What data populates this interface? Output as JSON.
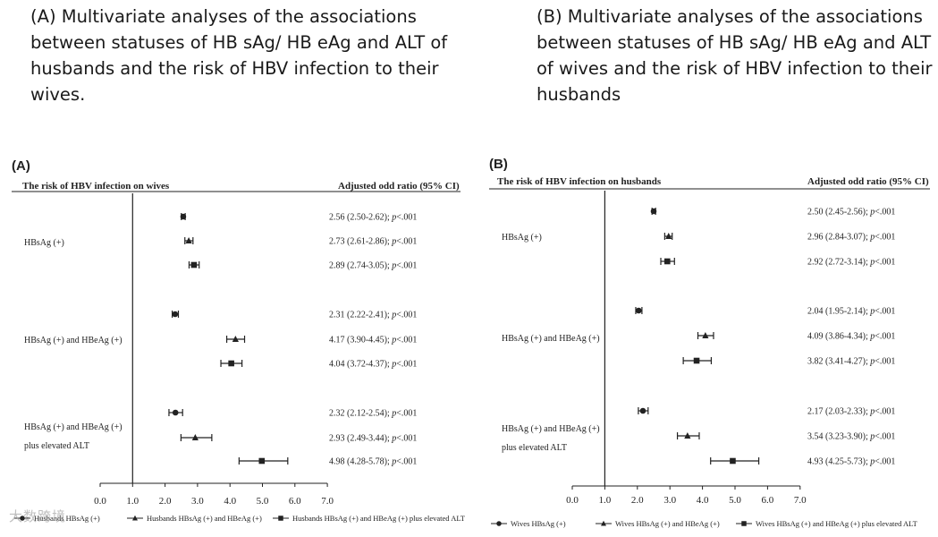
{
  "headings": {
    "a": "(A) Multivariate analyses of the associations between statuses of HB sAg/ HB eAg and ALT of husbands and the risk of HBV infection to their wives.",
    "b": "(B) Multivariate analyses of the associations between statuses of HB sAg/ HB eAg and ALT of wives and the risk of HBV infection to their husbands"
  },
  "watermark": "大数跨境",
  "chart_data": [
    {
      "type": "forest",
      "panel_label": "(A)",
      "title": "The risk of HBV infection on wives",
      "ci_header": "Adjusted odd ratio (95% CI)",
      "x_ticks": [
        "0.0",
        "1.0",
        "2.0",
        "3.0",
        "4.0",
        "5.0",
        "6.0",
        "7.0"
      ],
      "xlim": [
        0,
        7
      ],
      "reference_line": 1.0,
      "groups": [
        {
          "label_lines": [
            "HBsAg (+)"
          ],
          "rows": [
            {
              "series": 0,
              "or": 2.56,
              "lo": 2.5,
              "hi": 2.62,
              "text": "2.56 (2.50-2.62); p<.001"
            },
            {
              "series": 1,
              "or": 2.73,
              "lo": 2.61,
              "hi": 2.86,
              "text": "2.73 (2.61-2.86); p<.001"
            },
            {
              "series": 2,
              "or": 2.89,
              "lo": 2.74,
              "hi": 3.05,
              "text": "2.89 (2.74-3.05); p<.001"
            }
          ]
        },
        {
          "label_lines": [
            "HBsAg (+) and HBeAg (+)"
          ],
          "rows": [
            {
              "series": 0,
              "or": 2.31,
              "lo": 2.22,
              "hi": 2.41,
              "text": "2.31 (2.22-2.41); p<.001"
            },
            {
              "series": 1,
              "or": 4.17,
              "lo": 3.9,
              "hi": 4.45,
              "text": "4.17 (3.90-4.45); p<.001"
            },
            {
              "series": 2,
              "or": 4.04,
              "lo": 3.72,
              "hi": 4.37,
              "text": "4.04 (3.72-4.37); p<.001"
            }
          ]
        },
        {
          "label_lines": [
            "HBsAg (+) and HBeAg (+)",
            "plus elevated ALT"
          ],
          "rows": [
            {
              "series": 0,
              "or": 2.32,
              "lo": 2.12,
              "hi": 2.54,
              "text": "2.32 (2.12-2.54); p<.001"
            },
            {
              "series": 1,
              "or": 2.93,
              "lo": 2.49,
              "hi": 3.44,
              "text": "2.93 (2.49-3.44); p<.001"
            },
            {
              "series": 2,
              "or": 4.98,
              "lo": 4.28,
              "hi": 5.78,
              "text": "4.98 (4.28-5.78); p<.001"
            }
          ]
        }
      ],
      "legend": [
        {
          "marker": "circle",
          "label": "Husbands HBsAg (+)"
        },
        {
          "marker": "triangle",
          "label": "Husbands HBsAg (+) and HBeAg (+)"
        },
        {
          "marker": "square",
          "label": "Husbands HBsAg (+) and HBeAg (+) plus elevated ALT"
        }
      ]
    },
    {
      "type": "forest",
      "panel_label": "(B)",
      "title": "The risk of HBV infection on husbands",
      "ci_header": "Adjusted odd ratio (95% CI)",
      "x_ticks": [
        "0.0",
        "1.0",
        "2.0",
        "3.0",
        "4.0",
        "5.0",
        "6.0",
        "7.0"
      ],
      "xlim": [
        0,
        7
      ],
      "reference_line": 1.0,
      "groups": [
        {
          "label_lines": [
            "HBsAg (+)"
          ],
          "rows": [
            {
              "series": 0,
              "or": 2.5,
              "lo": 2.45,
              "hi": 2.56,
              "text": "2.50 (2.45-2.56); p<.001"
            },
            {
              "series": 1,
              "or": 2.96,
              "lo": 2.84,
              "hi": 3.07,
              "text": "2.96 (2.84-3.07); p<.001"
            },
            {
              "series": 2,
              "or": 2.92,
              "lo": 2.72,
              "hi": 3.14,
              "text": "2.92 (2.72-3.14); p<.001"
            }
          ]
        },
        {
          "label_lines": [
            "HBsAg (+) and HBeAg (+)"
          ],
          "rows": [
            {
              "series": 0,
              "or": 2.04,
              "lo": 1.95,
              "hi": 2.14,
              "text": "2.04 (1.95-2.14); p<.001"
            },
            {
              "series": 1,
              "or": 4.09,
              "lo": 3.86,
              "hi": 4.34,
              "text": "4.09 (3.86-4.34); p<.001"
            },
            {
              "series": 2,
              "or": 3.82,
              "lo": 3.41,
              "hi": 4.27,
              "text": "3.82 (3.41-4.27); p<.001"
            }
          ]
        },
        {
          "label_lines": [
            "HBsAg (+) and HBeAg (+)",
            "plus elevated ALT"
          ],
          "rows": [
            {
              "series": 0,
              "or": 2.17,
              "lo": 2.03,
              "hi": 2.33,
              "text": "2.17 (2.03-2.33); p<.001"
            },
            {
              "series": 1,
              "or": 3.54,
              "lo": 3.23,
              "hi": 3.9,
              "text": "3.54 (3.23-3.90); p<.001"
            },
            {
              "series": 2,
              "or": 4.93,
              "lo": 4.25,
              "hi": 5.73,
              "text": "4.93 (4.25-5.73); p<.001"
            }
          ]
        }
      ],
      "legend": [
        {
          "marker": "circle",
          "label": "Wives HBsAg (+)"
        },
        {
          "marker": "triangle",
          "label": "Wives HBsAg (+) and HBeAg (+)"
        },
        {
          "marker": "square",
          "label": "Wives HBsAg (+) and HBeAg (+) plus elevated ALT"
        }
      ]
    }
  ]
}
